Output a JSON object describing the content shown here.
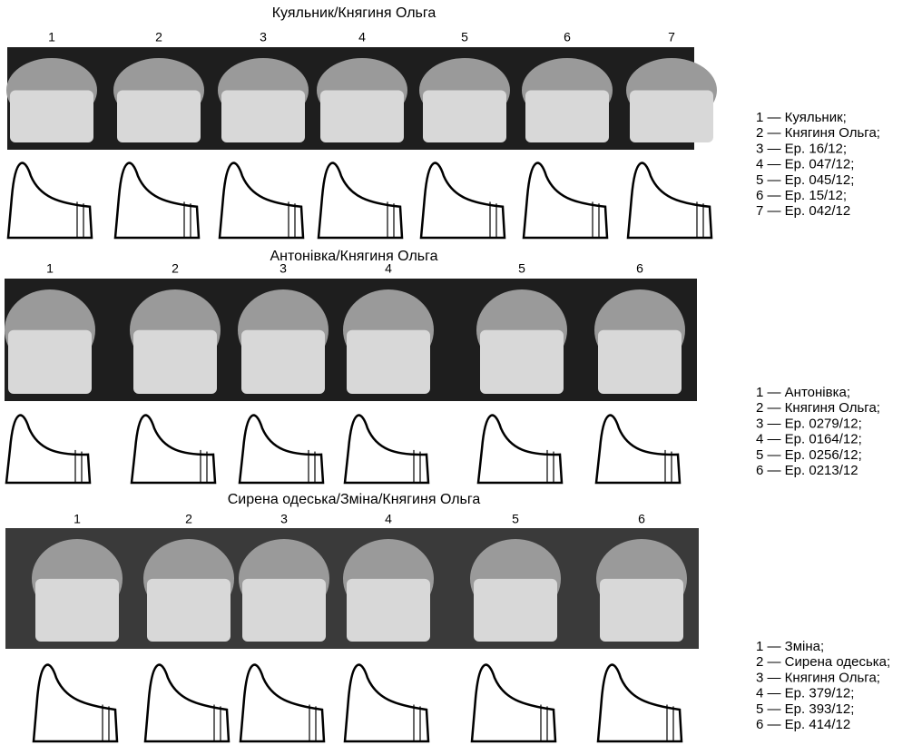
{
  "panels": [
    {
      "title": "Куяльник/Княгиня Ольга",
      "numbers": [
        "1",
        "2",
        "3",
        "4",
        "5",
        "6",
        "7"
      ],
      "legend": [
        "1 — Куяльник;",
        "2 — Княгиня Ольга;",
        "3 — Ер. 16/12;",
        "4 — Ер. 047/12;",
        "5 — Ер. 045/12;",
        "6 — Ер. 15/12;",
        "7 — Ер. 042/12"
      ]
    },
    {
      "title": "Антонівка/Княгиня Ольга",
      "numbers": [
        "1",
        "2",
        "3",
        "4",
        "5",
        "6"
      ],
      "legend": [
        "1 — Антонівка;",
        "2 — Княгиня Ольга;",
        "3 — Ер. 0279/12;",
        "4 — Ер. 0164/12;",
        "5 — Ер. 0256/12;",
        "6 — Ер. 0213/12"
      ]
    },
    {
      "title": "Сирена одеська/Зміна/Княгиня Ольга",
      "numbers": [
        "1",
        "2",
        "3",
        "4",
        "5",
        "6"
      ],
      "legend": [
        "1 — Зміна;",
        "2 — Сирена одеська;",
        "3 — Княгиня Ольга;",
        "4 — Ер. 379/12;",
        "5 — Ер. 393/12;",
        "6 — Ер. 414/12"
      ]
    }
  ]
}
